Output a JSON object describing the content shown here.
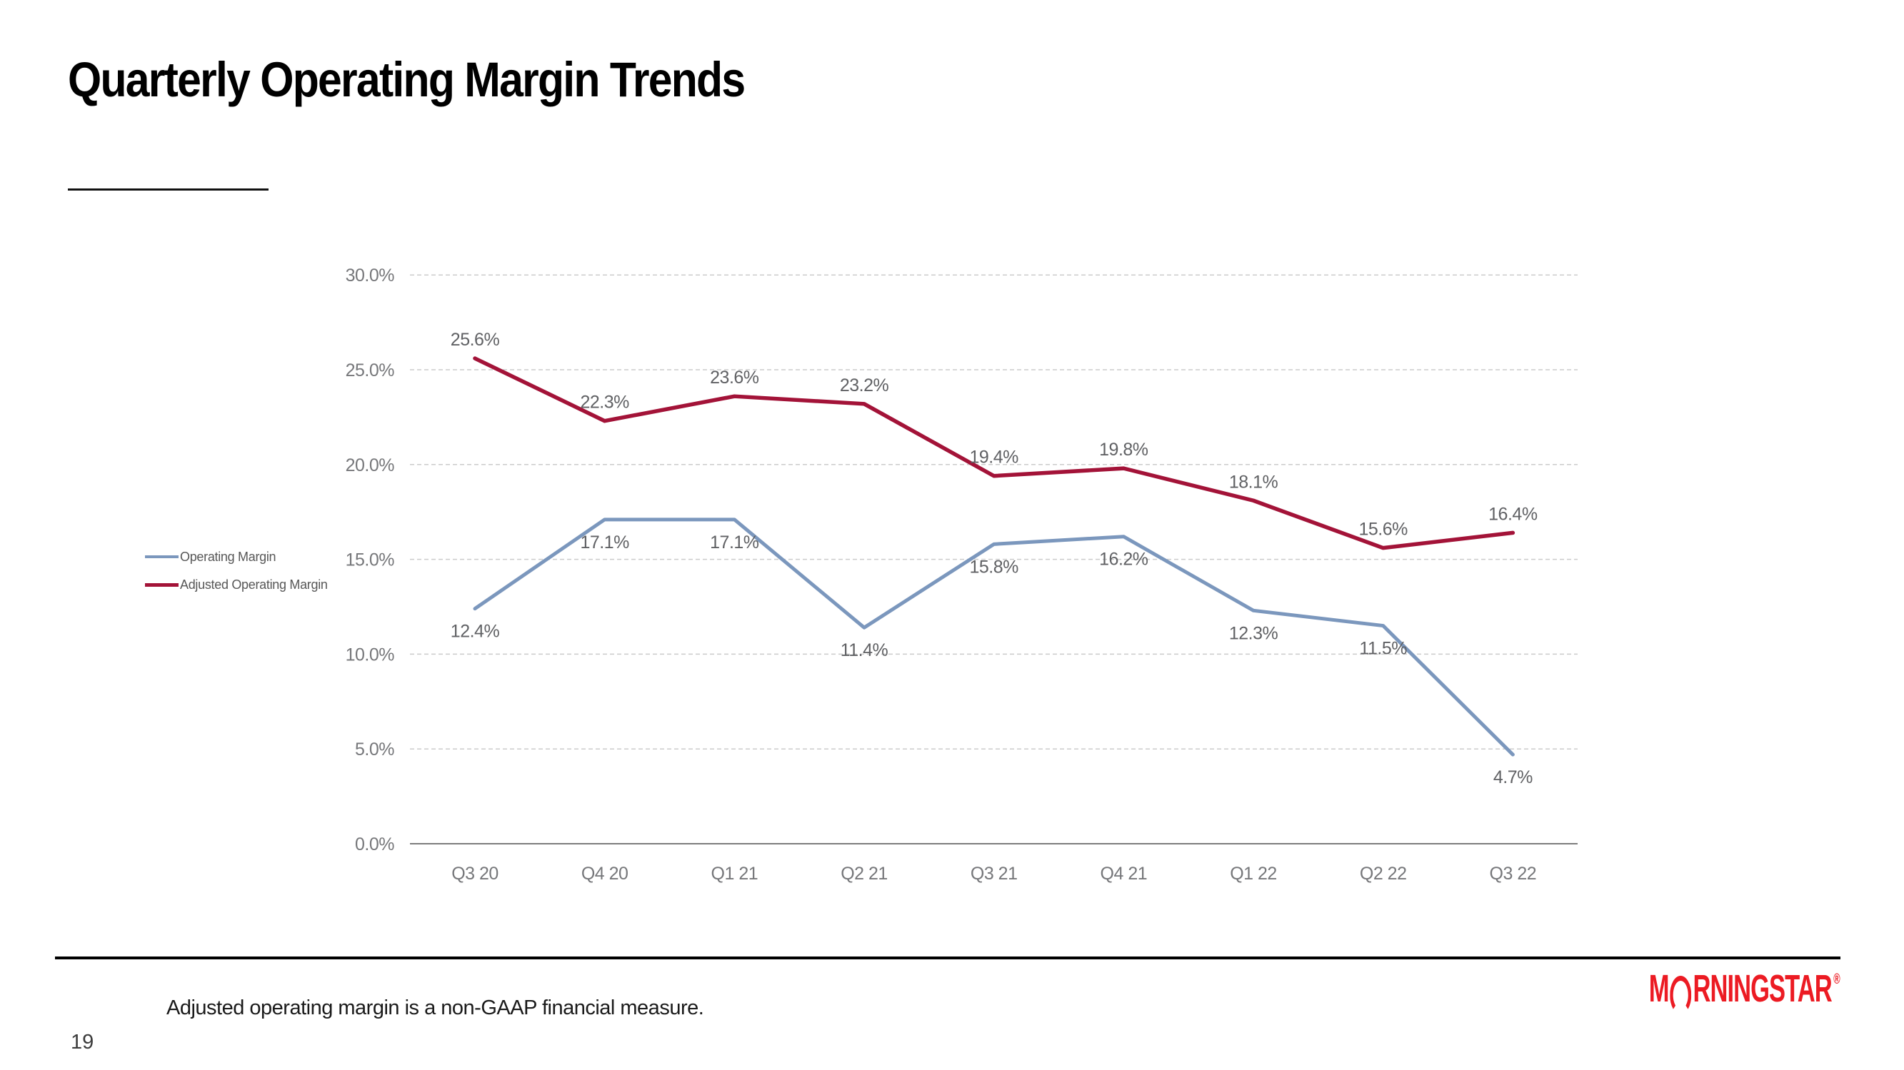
{
  "slide": {
    "title": "Quarterly Operating Margin Trends",
    "footnote": "Adjusted operating margin is a non-GAAP financial measure.",
    "page_number": "19",
    "logo": {
      "text_m": "M",
      "text_rest": "RNINGSTAR",
      "registered_mark": "®",
      "color": "#ec1b23"
    }
  },
  "chart_data": {
    "type": "line",
    "title": "",
    "xlabel": "",
    "ylabel": "",
    "categories": [
      "Q3 20",
      "Q4 20",
      "Q1 21",
      "Q2 21",
      "Q3 21",
      "Q4 21",
      "Q1 22",
      "Q2 22",
      "Q3 22"
    ],
    "series": [
      {
        "name": "Operating Margin",
        "color": "#7b97bd",
        "line_width": 5,
        "values": [
          12.4,
          17.1,
          17.1,
          11.4,
          15.8,
          16.2,
          12.3,
          11.5,
          4.7
        ],
        "labels": [
          "12.4%",
          "17.1%",
          "17.1%",
          "11.4%",
          "15.8%",
          "16.2%",
          "12.3%",
          "11.5%",
          "4.7%"
        ],
        "label_position": "below"
      },
      {
        "name": "Adjusted Operating Margin",
        "color": "#a31338",
        "line_width": 5.5,
        "values": [
          25.6,
          22.3,
          23.6,
          23.2,
          19.4,
          19.8,
          18.1,
          15.6,
          16.4
        ],
        "labels": [
          "25.6%",
          "22.3%",
          "23.6%",
          "23.2%",
          "19.4%",
          "19.8%",
          "18.1%",
          "15.6%",
          "16.4%"
        ],
        "label_position": "above"
      }
    ],
    "y_axis": {
      "ticks": [
        {
          "label": "0.0%",
          "value": 0
        },
        {
          "label": "5.0%",
          "value": 5
        },
        {
          "label": "10.0%",
          "value": 10
        },
        {
          "label": "15.0%",
          "value": 15
        },
        {
          "label": "20.0%",
          "value": 20
        },
        {
          "label": "25.0%",
          "value": 25
        },
        {
          "label": "30.0%",
          "value": 30
        }
      ]
    },
    "ylim": [
      0,
      30
    ],
    "grid": "horizontal-dashed",
    "grid_color": "#cbcbcb",
    "axis_line_color": "#7d7d7d",
    "legend_position": "middle-left"
  }
}
